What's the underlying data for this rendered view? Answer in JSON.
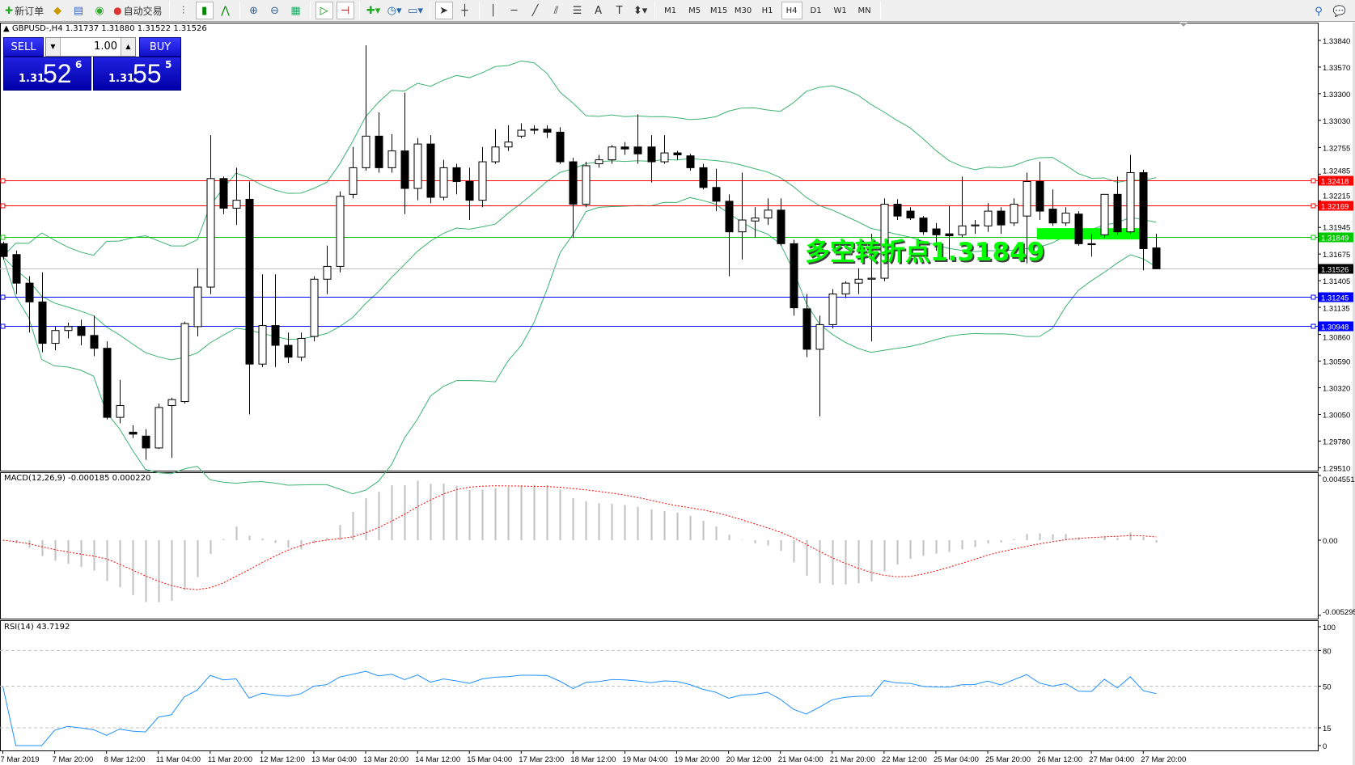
{
  "toolbar": {
    "new_order": "新订单",
    "auto_trading": "自动交易",
    "timeframes": [
      "M1",
      "M5",
      "M15",
      "M30",
      "H1",
      "H4",
      "D1",
      "W1",
      "MN"
    ],
    "active_timeframe": "H4"
  },
  "chart": {
    "header": "GBPUSD-,H4  1.31737 1.31880 1.31522 1.31526",
    "symbol": "GBPUSD-",
    "period": "H4",
    "ylim": [
      1.2948,
      1.3402
    ],
    "price_ticks": [
      "1.33840",
      "1.33570",
      "1.33300",
      "1.33030",
      "1.32755",
      "1.32485",
      "1.32215",
      "1.31945",
      "1.31675",
      "1.31405",
      "1.31135",
      "1.30860",
      "1.30590",
      "1.30320",
      "1.30050",
      "1.29780",
      "1.29510"
    ],
    "hlines": [
      {
        "price": 1.32418,
        "label": "1.32418",
        "color": "#ff0000"
      },
      {
        "price": 1.32169,
        "label": "1.32169",
        "color": "#ff0000"
      },
      {
        "price": 1.31849,
        "label": "1.31849",
        "color": "#00c800"
      },
      {
        "price": 1.31245,
        "label": "1.31245",
        "color": "#0000ff"
      },
      {
        "price": 1.30948,
        "label": "1.30948",
        "color": "#0000ff"
      }
    ],
    "bid_line": {
      "price": 1.31526,
      "label": "1.31526",
      "color": "#000000"
    },
    "annotation": {
      "text": "多空转折点1.31849",
      "color": "#00ff00"
    },
    "band_color": "#3cb371",
    "candles": [
      [
        1.3178,
        1.318,
        1.3162,
        1.3165
      ],
      [
        1.3167,
        1.3171,
        1.3127,
        1.3138
      ],
      [
        1.3138,
        1.3145,
        1.3088,
        1.3119
      ],
      [
        1.3119,
        1.3149,
        1.3068,
        1.3077
      ],
      [
        1.3077,
        1.3094,
        1.307,
        1.309
      ],
      [
        1.309,
        1.3098,
        1.3082,
        1.3094
      ],
      [
        1.3094,
        1.3101,
        1.3075,
        1.3085
      ],
      [
        1.3085,
        1.3105,
        1.3064,
        1.3072
      ],
      [
        1.3072,
        1.3079,
        1.3,
        1.3002
      ],
      [
        1.3002,
        1.304,
        1.2996,
        1.3014
      ],
      [
        1.2987,
        1.2994,
        1.2981,
        1.2985
      ],
      [
        1.2983,
        1.299,
        1.2959,
        1.2971
      ],
      [
        1.2971,
        1.3016,
        1.297,
        1.3012
      ],
      [
        1.3014,
        1.3022,
        1.2961,
        1.302
      ],
      [
        1.3018,
        1.3099,
        1.3016,
        1.3097
      ],
      [
        1.3094,
        1.3153,
        1.3084,
        1.3134
      ],
      [
        1.3134,
        1.3288,
        1.3127,
        1.3244
      ],
      [
        1.3244,
        1.3246,
        1.3208,
        1.3214
      ],
      [
        1.3214,
        1.3255,
        1.3197,
        1.3222
      ],
      [
        1.3223,
        1.3241,
        1.3005,
        1.3056
      ],
      [
        1.3056,
        1.3147,
        1.3053,
        1.3095
      ],
      [
        1.3095,
        1.3147,
        1.3053,
        1.3075
      ],
      [
        1.3075,
        1.3088,
        1.3057,
        1.3063
      ],
      [
        1.3063,
        1.3088,
        1.3059,
        1.3082
      ],
      [
        1.3084,
        1.3145,
        1.3079,
        1.3142
      ],
      [
        1.3142,
        1.3176,
        1.3127,
        1.3155
      ],
      [
        1.3155,
        1.3231,
        1.3149,
        1.3226
      ],
      [
        1.3228,
        1.3276,
        1.3224,
        1.3255
      ],
      [
        1.3255,
        1.3379,
        1.3252,
        1.3287
      ],
      [
        1.3287,
        1.3311,
        1.325,
        1.3255
      ],
      [
        1.3255,
        1.3289,
        1.325,
        1.3272
      ],
      [
        1.3272,
        1.3331,
        1.3208,
        1.3234
      ],
      [
        1.3234,
        1.3285,
        1.3222,
        1.3279
      ],
      [
        1.3279,
        1.3288,
        1.3219,
        1.3225
      ],
      [
        1.3225,
        1.3263,
        1.3222,
        1.3255
      ],
      [
        1.3255,
        1.3259,
        1.3228,
        1.3241
      ],
      [
        1.3241,
        1.3255,
        1.3202,
        1.3222
      ],
      [
        1.3222,
        1.3276,
        1.3215,
        1.3261
      ],
      [
        1.3261,
        1.3294,
        1.3259,
        1.3276
      ],
      [
        1.3276,
        1.3298,
        1.3272,
        1.3281
      ],
      [
        1.3287,
        1.33,
        1.3285,
        1.3293
      ],
      [
        1.3294,
        1.3298,
        1.3289,
        1.3293
      ],
      [
        1.3294,
        1.3298,
        1.3285,
        1.3291
      ],
      [
        1.3291,
        1.3296,
        1.3259,
        1.3261
      ],
      [
        1.3261,
        1.3265,
        1.3184,
        1.3218
      ],
      [
        1.3218,
        1.3261,
        1.3215,
        1.3257
      ],
      [
        1.3259,
        1.3268,
        1.3255,
        1.3263
      ],
      [
        1.3263,
        1.3278,
        1.3259,
        1.3276
      ],
      [
        1.3276,
        1.3281,
        1.3268,
        1.3274
      ],
      [
        1.3276,
        1.3309,
        1.3259,
        1.3269
      ],
      [
        1.3276,
        1.3288,
        1.324,
        1.3261
      ],
      [
        1.3261,
        1.3288,
        1.3259,
        1.327
      ],
      [
        1.327,
        1.3272,
        1.3263,
        1.3268
      ],
      [
        1.3267,
        1.3269,
        1.3252,
        1.3255
      ],
      [
        1.3255,
        1.3259,
        1.3233,
        1.3235
      ],
      [
        1.3235,
        1.3254,
        1.3211,
        1.3221
      ],
      [
        1.3221,
        1.3228,
        1.3145,
        1.319
      ],
      [
        1.319,
        1.325,
        1.3162,
        1.3202
      ],
      [
        1.3201,
        1.3215,
        1.3184,
        1.3204
      ],
      [
        1.3204,
        1.3224,
        1.3197,
        1.3212
      ],
      [
        1.3212,
        1.3224,
        1.3176,
        1.3178
      ],
      [
        1.3178,
        1.3182,
        1.3105,
        1.3113
      ],
      [
        1.3112,
        1.3127,
        1.3063,
        1.3071
      ],
      [
        1.3071,
        1.3105,
        1.3003,
        1.3096
      ],
      [
        1.3096,
        1.3132,
        1.3092,
        1.3127
      ],
      [
        1.3127,
        1.314,
        1.3123,
        1.3138
      ],
      [
        1.3138,
        1.3153,
        1.3127,
        1.3142
      ],
      [
        1.3142,
        1.3188,
        1.3079,
        1.3143
      ],
      [
        1.3143,
        1.3224,
        1.314,
        1.3218
      ],
      [
        1.3218,
        1.3223,
        1.3202,
        1.3206
      ],
      [
        1.3211,
        1.3215,
        1.3202,
        1.3204
      ],
      [
        1.3204,
        1.3206,
        1.3187,
        1.319
      ],
      [
        1.3193,
        1.3199,
        1.3171,
        1.3187
      ],
      [
        1.3188,
        1.3217,
        1.3162,
        1.3186
      ],
      [
        1.3187,
        1.3246,
        1.3184,
        1.3196
      ],
      [
        1.3196,
        1.3202,
        1.3188,
        1.3197
      ],
      [
        1.3196,
        1.3219,
        1.319,
        1.3211
      ],
      [
        1.3211,
        1.3215,
        1.3188,
        1.3197
      ],
      [
        1.3199,
        1.3224,
        1.3196,
        1.3218
      ],
      [
        1.3206,
        1.325,
        1.3158,
        1.3241
      ],
      [
        1.3241,
        1.3261,
        1.3202,
        1.3211
      ],
      [
        1.3213,
        1.3233,
        1.3196,
        1.3199
      ],
      [
        1.3199,
        1.3215,
        1.3196,
        1.3209
      ],
      [
        1.3208,
        1.3211,
        1.3176,
        1.3178
      ],
      [
        1.3178,
        1.3188,
        1.3165,
        1.3177
      ],
      [
        1.3187,
        1.3228,
        1.3184,
        1.3228
      ],
      [
        1.3228,
        1.3246,
        1.3187,
        1.319
      ],
      [
        1.319,
        1.3268,
        1.3188,
        1.325
      ],
      [
        1.325,
        1.3253,
        1.3151,
        1.3173
      ],
      [
        1.31737,
        1.3188,
        1.31522,
        1.31526
      ]
    ]
  },
  "trade_panel": {
    "sell": "SELL",
    "buy": "BUY",
    "lot": "1.00",
    "sell_prefix": "1.31",
    "sell_big": "52",
    "sell_sup": "6",
    "buy_prefix": "1.31",
    "buy_big": "55",
    "buy_sup": "5"
  },
  "macd": {
    "title": "MACD(12,26,9) -0.000185 0.000220",
    "ticks": [
      "0.004551",
      "0.00",
      "-0.005295"
    ],
    "range": [
      -0.005295,
      0.004551
    ],
    "hist_color": "#c0c0c0",
    "signal_color": "#ff0000"
  },
  "rsi": {
    "title": "RSI(14) 43.7192",
    "ticks": [
      "100",
      "80",
      "50",
      "15",
      "0"
    ],
    "levels": [
      80,
      50,
      15
    ],
    "color": "#1e90ff"
  },
  "time_labels": [
    "7 Mar 2019",
    "7 Mar 20:00",
    "8 Mar 12:00",
    "11 Mar 04:00",
    "11 Mar 20:00",
    "12 Mar 12:00",
    "13 Mar 04:00",
    "13 Mar 20:00",
    "14 Mar 12:00",
    "15 Mar 04:00",
    "17 Mar 23:00",
    "18 Mar 12:00",
    "19 Mar 04:00",
    "19 Mar 20:00",
    "20 Mar 12:00",
    "21 Mar 04:00",
    "21 Mar 20:00",
    "22 Mar 12:00",
    "25 Mar 04:00",
    "25 Mar 20:00",
    "26 Mar 12:00",
    "27 Mar 04:00",
    "27 Mar 20:00"
  ]
}
